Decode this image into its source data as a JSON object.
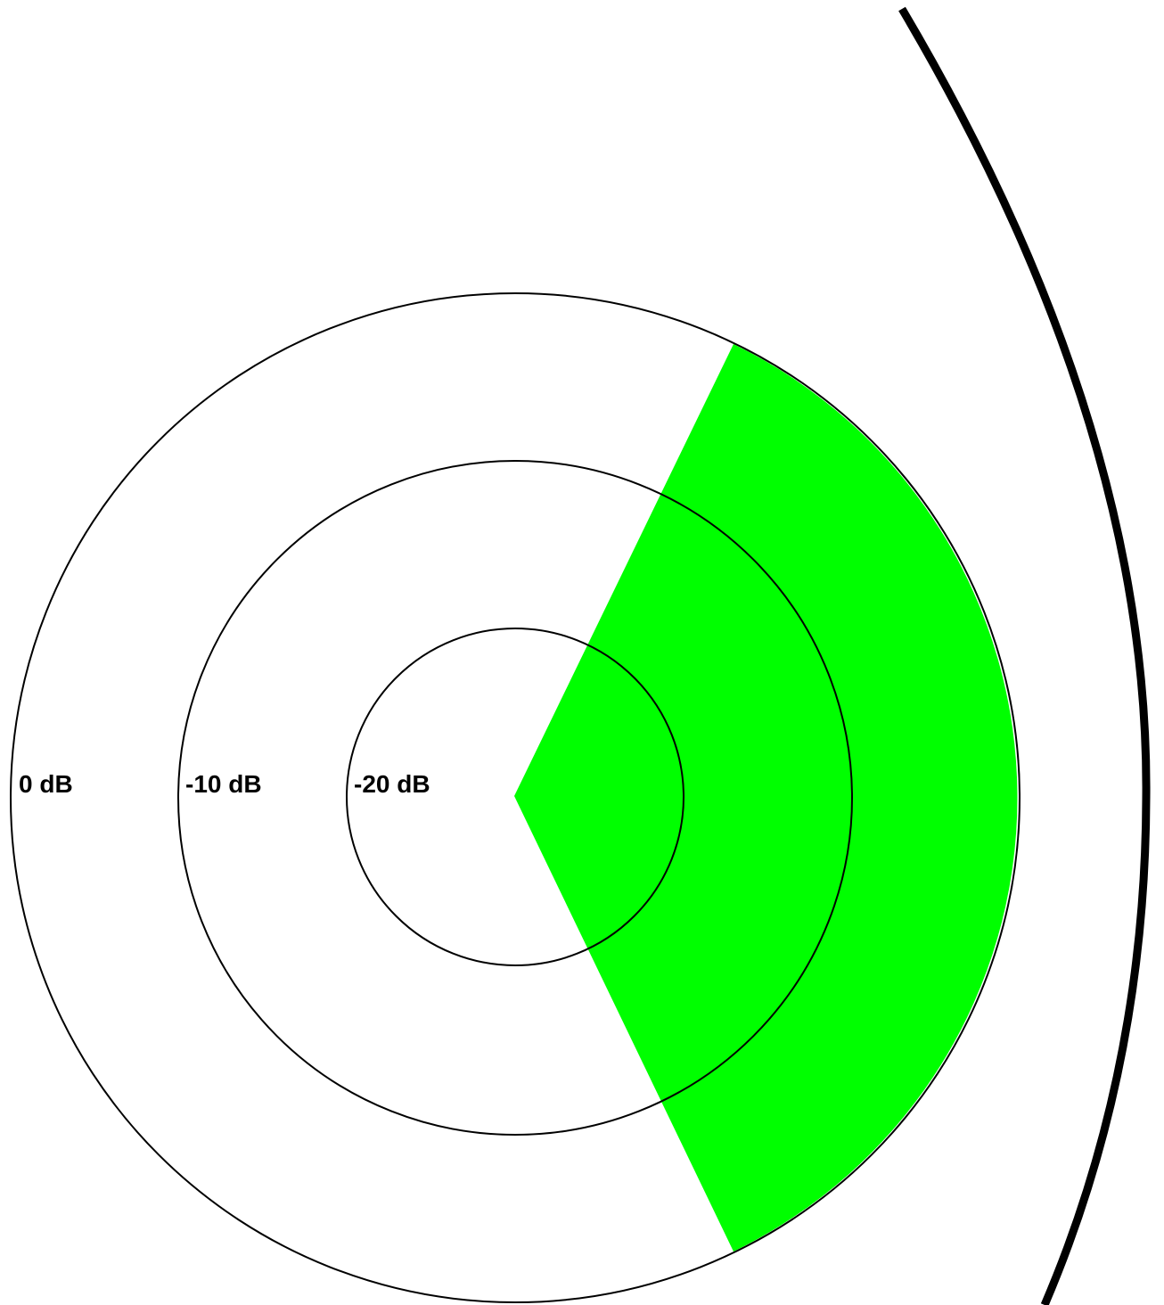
{
  "diagram": {
    "colors": {
      "sector_fill": "#00ff00",
      "ring_stroke": "#000000",
      "outer_arc_stroke": "#000000",
      "background": "#ffffff"
    },
    "rings": [
      {
        "label": "0 dB"
      },
      {
        "label": "-10 dB"
      },
      {
        "label": "-20 dB"
      }
    ]
  }
}
